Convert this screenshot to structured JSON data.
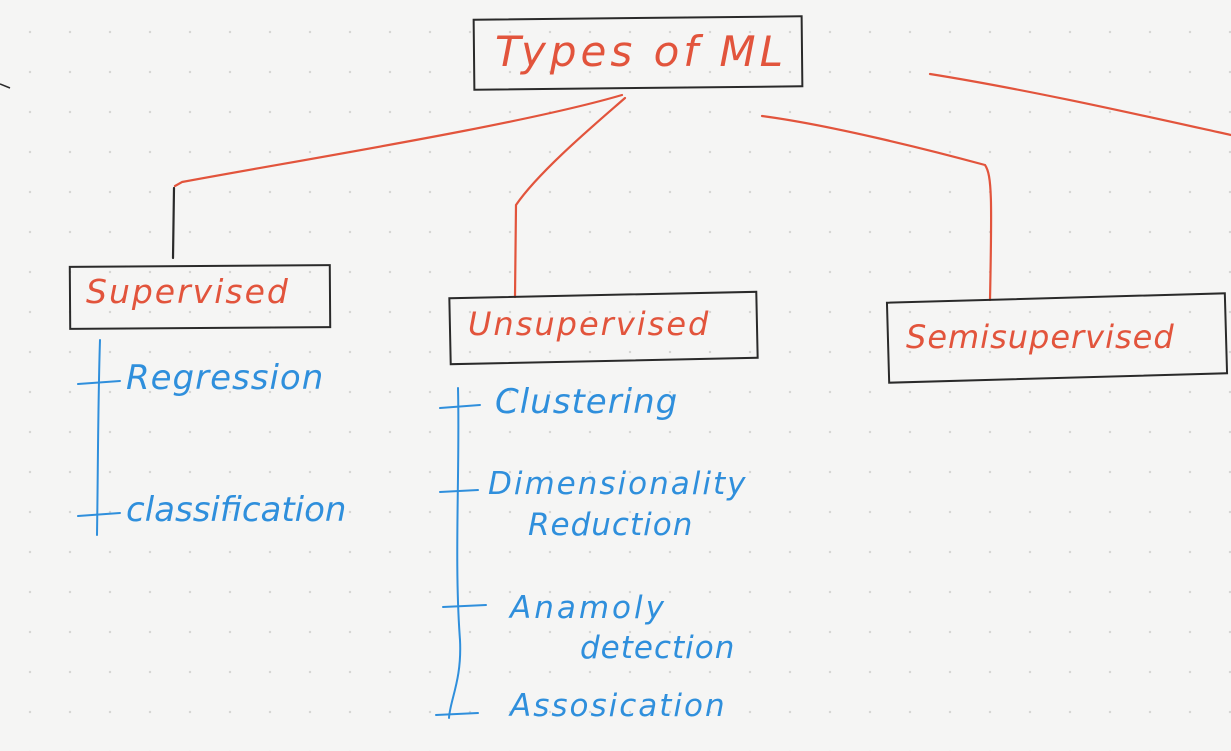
{
  "diagram": {
    "root": {
      "label": "Types of ML"
    },
    "categories": [
      {
        "key": "supervised",
        "label": "Supervised",
        "items": [
          "Regression",
          "classification"
        ]
      },
      {
        "key": "unsupervised",
        "label": "Unsupervised",
        "items": [
          "Clustering",
          "Dimensionality",
          "Reduction",
          "Anamoly",
          "detection",
          "Assosication"
        ]
      },
      {
        "key": "semisupervised",
        "label": "Semisupervised",
        "items": []
      }
    ]
  },
  "colors": {
    "connector": "#e2543c",
    "box_label": "#e2543c",
    "box_border": "#2a2a2a",
    "item_text": "#2f8fdc",
    "item_branch": "#2f8fdc"
  }
}
